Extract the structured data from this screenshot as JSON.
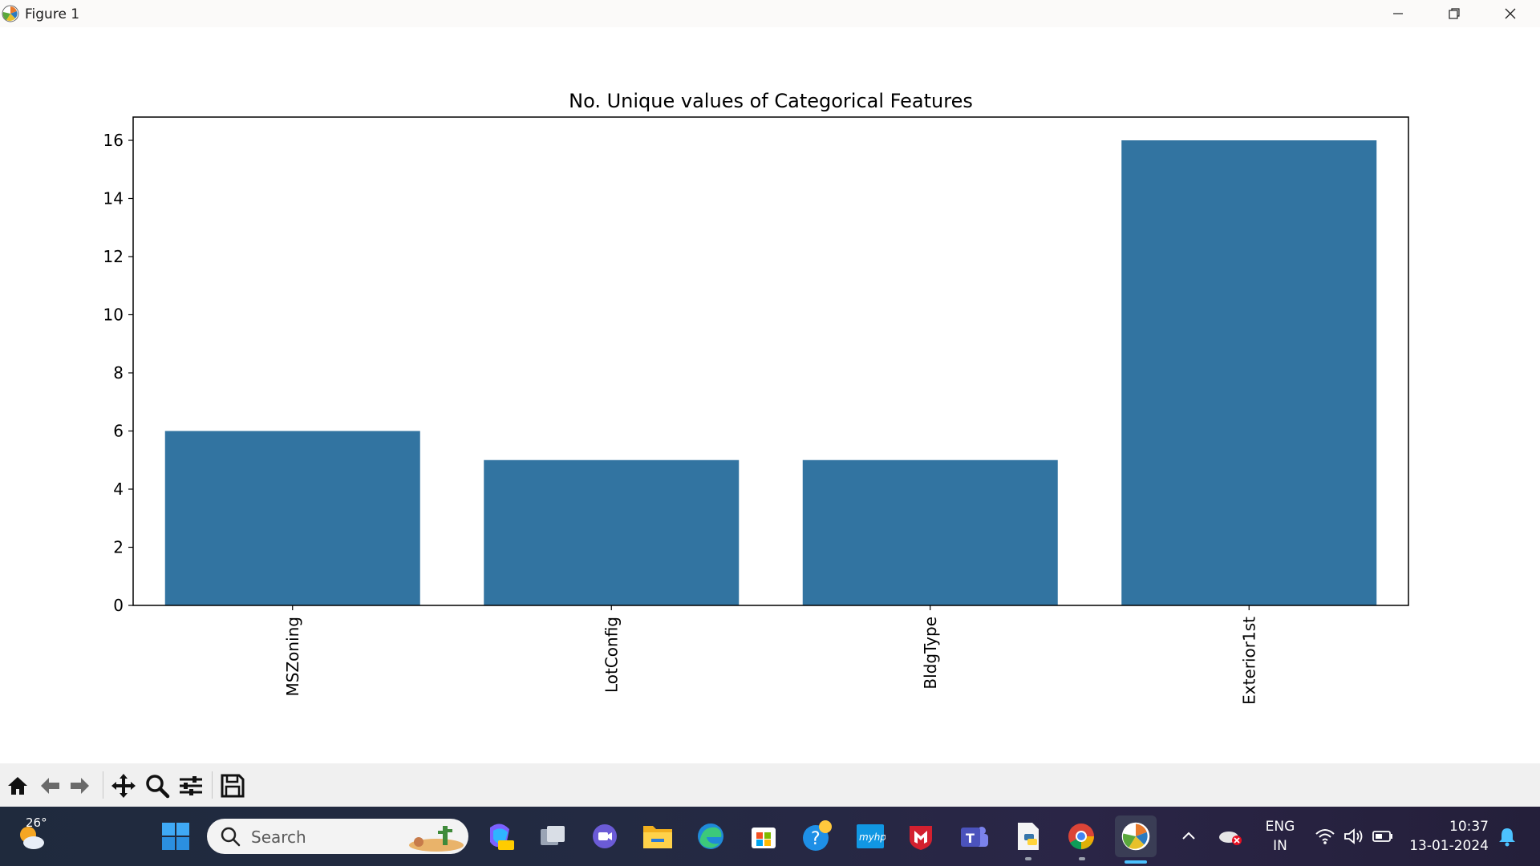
{
  "window": {
    "title": "Figure 1"
  },
  "chart_data": {
    "type": "bar",
    "title": "No. Unique values of Categorical Features",
    "categories": [
      "MSZoning",
      "LotConfig",
      "BldgType",
      "Exterior1st"
    ],
    "values": [
      6,
      5,
      5,
      16
    ],
    "ylim": [
      0,
      16.8
    ],
    "yticks": [
      0,
      2,
      4,
      6,
      8,
      10,
      12,
      14,
      16
    ],
    "xlabel": "",
    "ylabel": "",
    "grid": false,
    "bar_color": "#3274a1",
    "xtick_rotation": "vertical"
  },
  "toolbar": {
    "icons": [
      "home-icon",
      "back-arrow-icon",
      "forward-arrow-icon",
      "pan-icon",
      "zoom-icon",
      "configure-subplots-icon",
      "save-icon"
    ]
  },
  "taskbar": {
    "weather": {
      "temp": "26°"
    },
    "search": {
      "placeholder": "Search"
    },
    "tray": {
      "lang_top": "ENG",
      "lang_bottom": "IN",
      "time": "10:37",
      "date": "13-01-2024"
    }
  },
  "colors": {
    "taskbar": "#1f2a3d",
    "accent": "#4cc2ff"
  }
}
